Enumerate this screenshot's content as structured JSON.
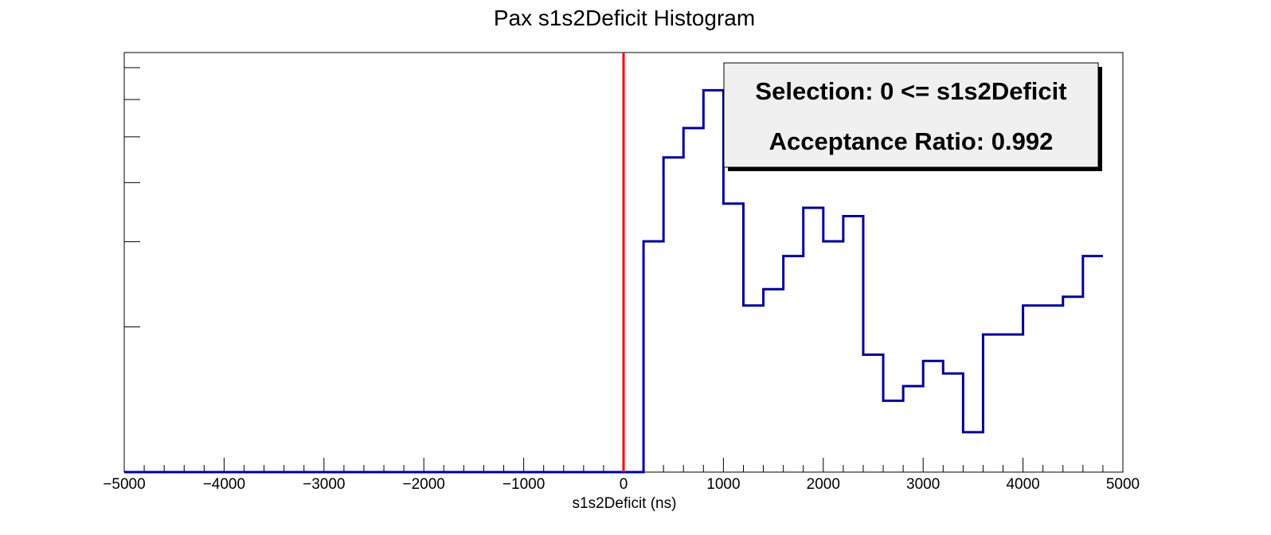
{
  "chart_data": {
    "type": "histogram",
    "title": "Pax s1s2Deficit Histogram",
    "xlabel": "s1s2Deficit (ns)",
    "ylabel": "",
    "xlim": [
      -5000,
      5000
    ],
    "ylim": [
      0,
      1
    ],
    "y_scale": "log",
    "y_tick_labels_shown": false,
    "grid": false,
    "bin_width": 200,
    "bin_edges_start": -5000,
    "bin_values": [
      0,
      0,
      0,
      0,
      0,
      0,
      0,
      0,
      0,
      0,
      0,
      0,
      0,
      0,
      0,
      0,
      0,
      0,
      0,
      0,
      0,
      0,
      0,
      0,
      0,
      0,
      0.55,
      0.75,
      0.82,
      0.91,
      0.64,
      0.397,
      0.436,
      0.515,
      0.63,
      0.55,
      0.61,
      0.28,
      0.17,
      0.205,
      0.265,
      0.235,
      0.095,
      0.328,
      0.328,
      0.397,
      0.397,
      0.418,
      0.515
    ],
    "x_ticks": [
      -5000,
      -4000,
      -3000,
      -2000,
      -1000,
      0,
      1000,
      2000,
      3000,
      4000,
      5000
    ],
    "x_tick_labels": [
      "−5000",
      "−4000",
      "−3000",
      "−2000",
      "−1000",
      "0",
      "1000",
      "2000",
      "3000",
      "4000",
      "5000"
    ],
    "cut_line": {
      "x": 0,
      "color": "#ff0000"
    },
    "series_color": "#000099",
    "legend": {
      "placement": "top-right",
      "lines": [
        "Selection: 0 <= s1s2Deficit",
        "Acceptance Ratio: 0.992"
      ]
    }
  }
}
